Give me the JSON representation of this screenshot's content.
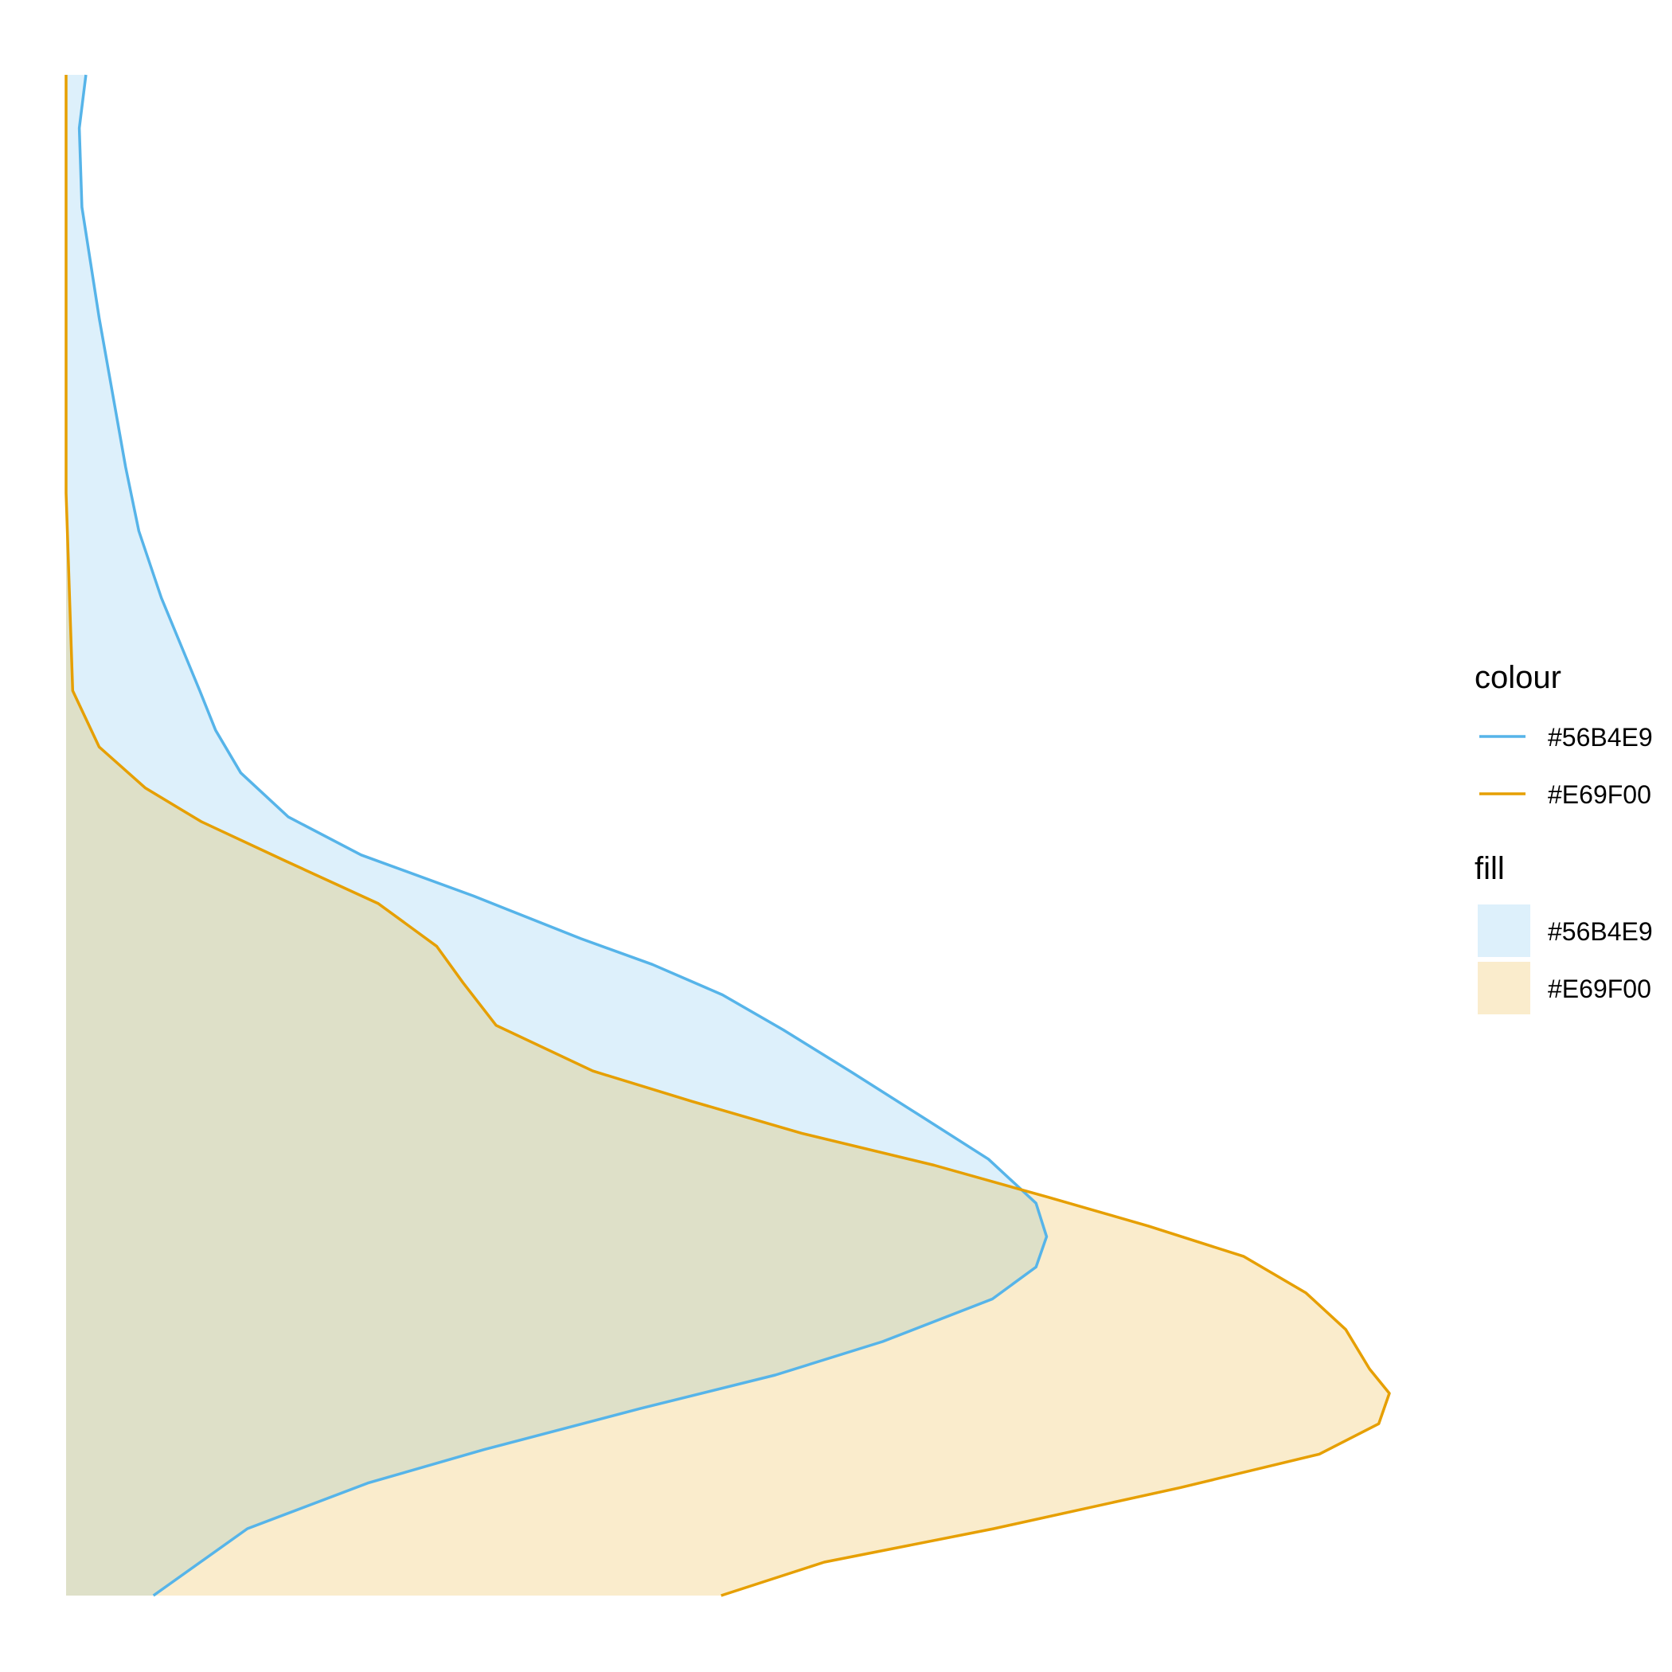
{
  "chart_data": {
    "type": "area",
    "orientation": "vertical-density",
    "title": "",
    "xlabel": "",
    "ylabel": "",
    "grid": false,
    "axes_visible": false,
    "legend_position": "right",
    "series": [
      {
        "name": "#56B4E9",
        "line_color": "#56B4E9",
        "fill_color": "#56B4E9",
        "fill_opacity": 0.2,
        "points": [
          [
            0.015,
            100
          ],
          [
            0.01,
            96.5
          ],
          [
            0.012,
            91.3
          ],
          [
            0.025,
            84
          ],
          [
            0.045,
            74.2
          ],
          [
            0.055,
            70
          ],
          [
            0.072,
            65.6
          ],
          [
            0.101,
            59.5
          ],
          [
            0.113,
            56.9
          ],
          [
            0.132,
            54.1
          ],
          [
            0.168,
            51.2
          ],
          [
            0.223,
            48.7
          ],
          [
            0.308,
            46
          ],
          [
            0.389,
            43.2
          ],
          [
            0.443,
            41.5
          ],
          [
            0.496,
            39.5
          ],
          [
            0.542,
            37.2
          ],
          [
            0.594,
            34.4
          ],
          [
            0.652,
            31.2
          ],
          [
            0.697,
            28.7
          ],
          [
            0.733,
            25.8
          ],
          [
            0.741,
            23.6
          ],
          [
            0.733,
            21.6
          ],
          [
            0.7,
            19.5
          ],
          [
            0.617,
            16.7
          ],
          [
            0.536,
            14.5
          ],
          [
            0.434,
            12.3
          ],
          [
            0.316,
            9.6
          ],
          [
            0.228,
            7.4
          ],
          [
            0.137,
            4.4
          ],
          [
            0.066,
            0
          ]
        ]
      },
      {
        "name": "#E69F00",
        "line_color": "#E69F00",
        "fill_color": "#E69F00",
        "fill_opacity": 0.2,
        "points": [
          [
            0.0,
            100
          ],
          [
            0.0,
            72.5
          ],
          [
            0.005,
            59.5
          ],
          [
            0.025,
            55.8
          ],
          [
            0.06,
            53.1
          ],
          [
            0.102,
            50.9
          ],
          [
            0.166,
            48.3
          ],
          [
            0.236,
            45.5
          ],
          [
            0.28,
            42.7
          ],
          [
            0.3,
            40.3
          ],
          [
            0.325,
            37.5
          ],
          [
            0.398,
            34.5
          ],
          [
            0.473,
            32.5
          ],
          [
            0.556,
            30.4
          ],
          [
            0.656,
            28.3
          ],
          [
            0.742,
            26.2
          ],
          [
            0.818,
            24.3
          ],
          [
            0.89,
            22.3
          ],
          [
            0.937,
            19.9
          ],
          [
            0.967,
            17.5
          ],
          [
            0.985,
            14.9
          ],
          [
            1.0,
            13.3
          ],
          [
            0.992,
            11.3
          ],
          [
            0.947,
            9.3
          ],
          [
            0.842,
            7.1
          ],
          [
            0.701,
            4.4
          ],
          [
            0.573,
            2.2
          ],
          [
            0.495,
            0
          ]
        ]
      }
    ],
    "legend": {
      "colour": {
        "title": "colour",
        "entries": [
          {
            "label": "#56B4E9",
            "color": "#56B4E9"
          },
          {
            "label": "#E69F00",
            "color": "#E69F00"
          }
        ]
      },
      "fill": {
        "title": "fill",
        "entries": [
          {
            "label": "#56B4E9",
            "color": "#56B4E9"
          },
          {
            "label": "#E69F00",
            "color": "#E69F00"
          }
        ]
      }
    }
  }
}
